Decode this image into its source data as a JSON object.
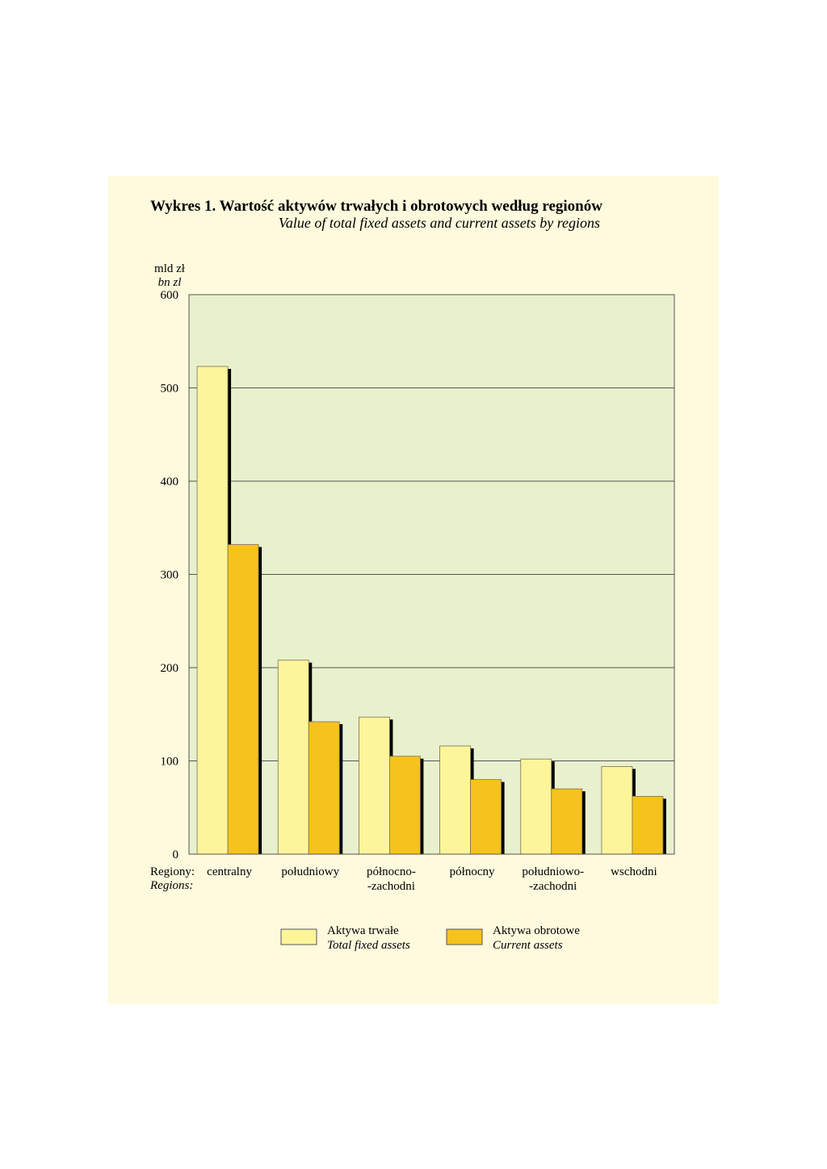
{
  "chart_data": {
    "type": "bar",
    "title": "Wykres 1. Wartość aktywów trwałych i obrotowych według regionów",
    "subtitle": "Value of total fixed assets and current assets by regions",
    "ylabel": "mld zł",
    "ylabel_en": "bn zl",
    "xlabel": "Regiony:",
    "xlabel_en": "Regions:",
    "ylim": [
      0,
      600
    ],
    "yticks": [
      "0",
      "100",
      "200",
      "300",
      "400",
      "500",
      "600"
    ],
    "ytick_values": [
      0,
      100,
      200,
      300,
      400,
      500,
      600
    ],
    "grid": true,
    "legend_position": "bottom",
    "categories": [
      [
        "centralny"
      ],
      [
        "południowy"
      ],
      [
        "północno-",
        "-zachodni"
      ],
      [
        "północny"
      ],
      [
        "południowo-",
        "-zachodni"
      ],
      [
        "wschodni"
      ]
    ],
    "series": [
      {
        "name": "Aktywa trwałe",
        "name_en": "Total fixed assets",
        "color": "#fcf59a",
        "values": [
          523,
          208,
          147,
          116,
          102,
          94
        ]
      },
      {
        "name": "Aktywa obrotowe",
        "name_en": "Current assets",
        "color": "#f6c21c",
        "values": [
          332,
          142,
          105,
          80,
          70,
          62
        ]
      }
    ],
    "colors": {
      "plot_background": "#e8f0cd",
      "panel_background": "#fefadd",
      "shadow": "#000000",
      "grid": "#555555"
    }
  }
}
